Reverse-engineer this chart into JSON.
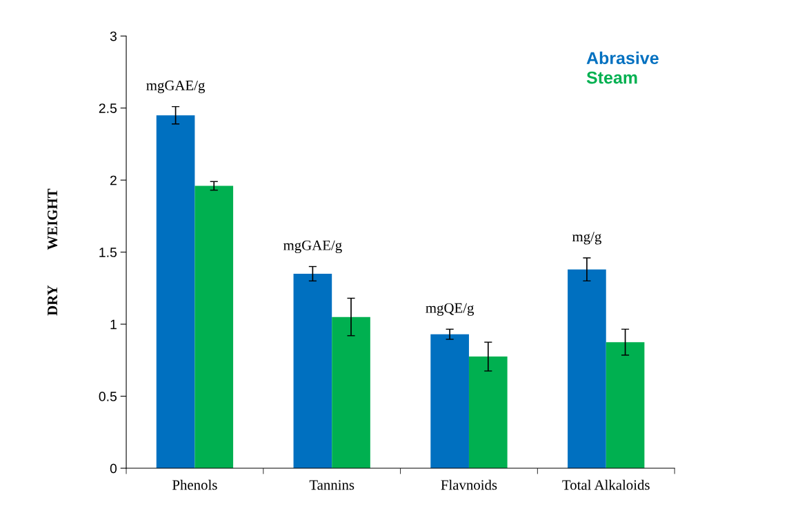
{
  "chart_data": {
    "type": "bar",
    "ylabel": "DRY          WEIGHT",
    "categories": [
      "Phenols",
      "Tannins",
      "Flavnoids",
      "Total Alkaloids"
    ],
    "series": [
      {
        "name": "Abrasive",
        "color": "#0070c0",
        "values": [
          2.45,
          1.35,
          0.93,
          1.38
        ],
        "errors": [
          0.06,
          0.05,
          0.035,
          0.08
        ]
      },
      {
        "name": "Steam",
        "color": "#00b050",
        "values": [
          1.96,
          1.05,
          0.775,
          0.875
        ],
        "errors": [
          0.03,
          0.13,
          0.1,
          0.09
        ]
      }
    ],
    "ylim": [
      0,
      3
    ],
    "yticks": [
      0,
      0.5,
      1,
      1.5,
      2,
      2.5,
      3
    ],
    "grid": false,
    "legend": "top right",
    "annotations": [
      "mgGAE/g",
      "mgGAE/g",
      "mgQE/g",
      "mg/g"
    ]
  }
}
